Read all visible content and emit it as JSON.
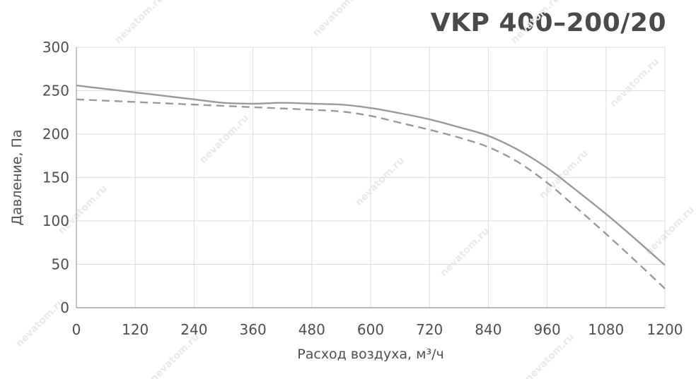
{
  "chart_data": {
    "type": "line",
    "title": "VKP 400–200/20",
    "xlabel": "Расход воздуха, м³/ч",
    "ylabel": "Давление, Па",
    "xlim": [
      0,
      1200
    ],
    "ylim": [
      0,
      300
    ],
    "x_ticks": [
      0,
      120,
      240,
      360,
      480,
      600,
      720,
      840,
      960,
      1080,
      1200
    ],
    "y_ticks": [
      0,
      50,
      100,
      150,
      200,
      250,
      300
    ],
    "grid": true,
    "legend": "none",
    "watermark": "nevatom.ru",
    "series": [
      {
        "style": "solid",
        "color": "#9a9a9a",
        "x": [
          0,
          120,
          240,
          300,
          360,
          420,
          480,
          540,
          600,
          660,
          720,
          780,
          840,
          900,
          960,
          1020,
          1080,
          1140,
          1200
        ],
        "y": [
          256,
          248,
          240,
          236,
          235,
          236,
          235,
          234,
          230,
          224,
          217,
          208,
          198,
          182,
          161,
          135,
          108,
          79,
          49
        ]
      },
      {
        "style": "dashed",
        "color": "#9a9a9a",
        "x": [
          0,
          120,
          240,
          360,
          480,
          540,
          600,
          660,
          720,
          780,
          840,
          900,
          960,
          1020,
          1080,
          1140,
          1200
        ],
        "y": [
          240,
          237,
          234,
          231,
          228,
          226,
          221,
          213,
          205,
          196,
          185,
          168,
          144,
          115,
          85,
          54,
          22
        ]
      }
    ]
  }
}
